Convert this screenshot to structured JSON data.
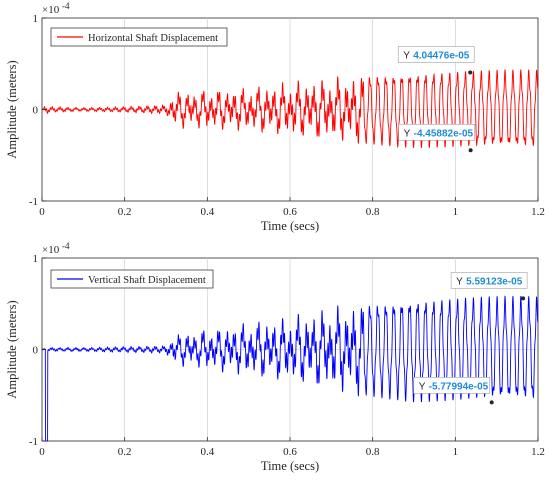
{
  "chart_data": [
    {
      "type": "line",
      "xlabel": "Time (secs)",
      "ylabel": "Amplitude (meters)",
      "exponent_label": "×10",
      "exponent_power": "-4",
      "xlim": [
        0,
        1.2
      ],
      "ylim": [
        -1,
        1
      ],
      "xticks": [
        "0",
        "0.2",
        "0.4",
        "0.6",
        "0.8",
        "1",
        "1.2"
      ],
      "yticks": [
        "-1",
        "0",
        "1"
      ],
      "grid": true,
      "legend_position": "top-left",
      "series": [
        {
          "name": "Horizontal Shaft Displacement",
          "color": "#ff0000",
          "envelope": [
            {
              "t": 0.0,
              "a": 0.0
            },
            {
              "t": 0.01,
              "a": 0.05
            },
            {
              "t": 0.02,
              "a": 0.03
            },
            {
              "t": 0.1,
              "a": 0.02
            },
            {
              "t": 0.2,
              "a": 0.03
            },
            {
              "t": 0.3,
              "a": 0.05
            },
            {
              "t": 0.32,
              "a": 0.18
            },
            {
              "t": 0.5,
              "a": 0.22
            },
            {
              "t": 0.6,
              "a": 0.28
            },
            {
              "t": 0.7,
              "a": 0.32
            },
            {
              "t": 0.8,
              "a": 0.37
            },
            {
              "t": 0.9,
              "a": 0.4
            },
            {
              "t": 1.2,
              "a": 0.42
            }
          ]
        }
      ],
      "datatips": [
        {
          "label": "Y",
          "value": "4.04476e-05",
          "x": 1.036,
          "y": 0.404476
        },
        {
          "label": "Y",
          "value": "-4.45882e-05",
          "x": 1.037,
          "y": -0.445882
        }
      ]
    },
    {
      "type": "line",
      "xlabel": "Time (secs)",
      "ylabel": "Amplitude (meters)",
      "exponent_label": "×10",
      "exponent_power": "-4",
      "xlim": [
        0,
        1.2
      ],
      "ylim": [
        -1,
        1
      ],
      "xticks": [
        "0",
        "0.2",
        "0.4",
        "0.6",
        "0.8",
        "1",
        "1.2"
      ],
      "yticks": [
        "-1",
        "0",
        "1"
      ],
      "grid": true,
      "legend_position": "top-left",
      "series": [
        {
          "name": "Vertical Shaft Displacement",
          "color": "#0000ff",
          "envelope": [
            {
              "t": 0.0,
              "a": 0.0
            },
            {
              "t": 0.02,
              "a": 0.02
            },
            {
              "t": 0.1,
              "a": 0.02
            },
            {
              "t": 0.2,
              "a": 0.03
            },
            {
              "t": 0.3,
              "a": 0.04
            },
            {
              "t": 0.32,
              "a": 0.15
            },
            {
              "t": 0.4,
              "a": 0.2
            },
            {
              "t": 0.5,
              "a": 0.27
            },
            {
              "t": 0.6,
              "a": 0.33
            },
            {
              "t": 0.7,
              "a": 0.42
            },
            {
              "t": 0.8,
              "a": 0.5
            },
            {
              "t": 0.9,
              "a": 0.55
            },
            {
              "t": 1.2,
              "a": 0.56
            }
          ]
        }
      ],
      "datatips": [
        {
          "label": "Y",
          "value": "5.59123e-05",
          "x": 1.164,
          "y": 0.559123
        },
        {
          "label": "Y",
          "value": "-5.77994e-05",
          "x": 1.088,
          "y": -0.577994
        }
      ]
    }
  ]
}
